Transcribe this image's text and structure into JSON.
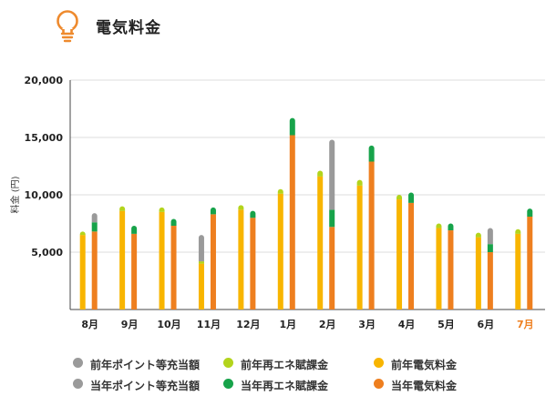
{
  "header": {
    "title": "電気料金",
    "icon": "lightbulb-icon",
    "icon_color": "#ee8a2e"
  },
  "chart_data": {
    "type": "bar",
    "stacked": true,
    "grouped": true,
    "ylabel": "料金 (円)",
    "ylim": [
      0,
      20000
    ],
    "yticks": [
      "20,000",
      "15,000",
      "10,000",
      "5,000"
    ],
    "ytick_values": [
      20000,
      15000,
      10000,
      5000
    ],
    "categories": [
      "8月",
      "9月",
      "10月",
      "11月",
      "12月",
      "1月",
      "2月",
      "3月",
      "4月",
      "5月",
      "6月",
      "7月"
    ],
    "highlight_category": "7月",
    "highlight_color": "#ee7f1f",
    "grid": "horizontal",
    "legend_position": "bottom",
    "previous_year": {
      "電気料金": [
        6500,
        8600,
        8500,
        4000,
        8700,
        10100,
        11600,
        10800,
        9600,
        7100,
        6300,
        6600
      ],
      "再エネ賦課金": [
        300,
        400,
        400,
        200,
        400,
        400,
        500,
        500,
        400,
        400,
        400,
        400
      ],
      "ポイント等充当額": [
        0,
        0,
        0,
        2300,
        0,
        0,
        0,
        0,
        0,
        0,
        0,
        0
      ]
    },
    "current_year": {
      "電気料金": [
        6800,
        6600,
        7300,
        8300,
        8000,
        15200,
        7200,
        12900,
        9300,
        6900,
        5000,
        8100
      ],
      "再エネ賦課金": [
        800,
        700,
        600,
        600,
        600,
        1500,
        1500,
        1400,
        900,
        600,
        700,
        700
      ],
      "ポイント等充当額": [
        800,
        0,
        0,
        0,
        0,
        0,
        6100,
        0,
        0,
        0,
        1400,
        0
      ]
    },
    "colors": {
      "prev_elec": "#f8b500",
      "prev_renew": "#b3d41c",
      "prev_point": "#9a9a9a",
      "curr_elec": "#ee7f1f",
      "curr_renew": "#17a34a",
      "curr_point": "#9a9a9a"
    }
  },
  "legend": [
    {
      "label": "前年ポイント等充当額",
      "color": "#9a9a9a"
    },
    {
      "label": "前年再エネ賦課金",
      "color": "#b3d41c"
    },
    {
      "label": "前年電気料金",
      "color": "#f8b500"
    },
    {
      "label": "当年ポイント等充当額",
      "color": "#9a9a9a"
    },
    {
      "label": "当年再エネ賦課金",
      "color": "#17a34a"
    },
    {
      "label": "当年電気料金",
      "color": "#ee7f1f"
    }
  ]
}
